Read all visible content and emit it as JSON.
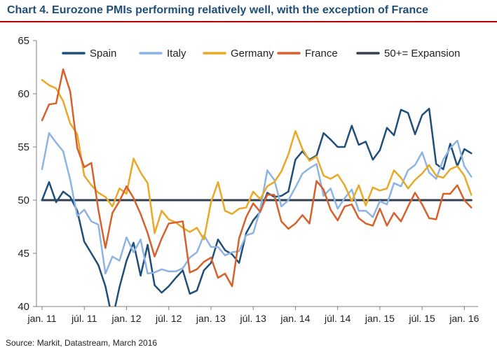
{
  "title": "Chart 4. Eurozone PMIs performing relatively well, with the exception of France",
  "source": "Source: Markit, Datastream, March 2016",
  "chart_data": {
    "type": "line",
    "title": "Chart 4. Eurozone PMIs performing relatively well, with the exception of France",
    "xlabel": "",
    "ylabel": "",
    "ylim": [
      40,
      65
    ],
    "yticks": [
      40,
      45,
      50,
      55,
      60,
      65
    ],
    "grid": false,
    "legend": "top",
    "x_months": [
      "jan. 11",
      "feb. 11",
      "mar. 11",
      "apr. 11",
      "maj 11",
      "jún. 11",
      "júl. 11",
      "aug. 11",
      "sep. 11",
      "okt. 11",
      "nov. 11",
      "dec. 11",
      "jan. 12",
      "feb. 12",
      "mar. 12",
      "apr. 12",
      "maj 12",
      "jún. 12",
      "júl. 12",
      "aug. 12",
      "sep. 12",
      "okt. 12",
      "nov. 12",
      "dec. 12",
      "jan. 13",
      "feb. 13",
      "mar. 13",
      "apr. 13",
      "maj 13",
      "jún. 13",
      "júl. 13",
      "aug. 13",
      "sep. 13",
      "okt. 13",
      "nov. 13",
      "dec. 13",
      "jan. 14",
      "feb. 14",
      "mar. 14",
      "apr. 14",
      "maj 14",
      "jún. 14",
      "júl. 14",
      "aug. 14",
      "sep. 14",
      "okt. 14",
      "nov. 14",
      "dec. 14",
      "jan. 15",
      "feb. 15",
      "mar. 15",
      "apr. 15",
      "maj 15",
      "jún. 15",
      "júl. 15",
      "aug. 15",
      "sep. 15",
      "okt. 15",
      "nov. 15",
      "dec. 15",
      "jan. 16",
      "feb. 16"
    ],
    "x_tick_labels": [
      {
        "index": 0,
        "label": "jan. 11"
      },
      {
        "index": 6,
        "label": "júl. 11"
      },
      {
        "index": 12,
        "label": "jan. 12"
      },
      {
        "index": 18,
        "label": "júl. 12"
      },
      {
        "index": 24,
        "label": "jan. 13"
      },
      {
        "index": 30,
        "label": "júl. 13"
      },
      {
        "index": 36,
        "label": "jan. 14"
      },
      {
        "index": 42,
        "label": "júl. 14"
      },
      {
        "index": 48,
        "label": "jan. 15"
      },
      {
        "index": 54,
        "label": "júl. 15"
      },
      {
        "index": 60,
        "label": "jan. 16"
      }
    ],
    "series": [
      {
        "name": "Spain",
        "color": "#1f4e79",
        "width": 2.5,
        "values": [
          50.0,
          51.7,
          49.8,
          50.8,
          50.3,
          49.0,
          46.1,
          45.0,
          43.9,
          41.9,
          38.8,
          41.8,
          44.3,
          46.0,
          42.9,
          45.8,
          42.0,
          41.3,
          41.9,
          42.7,
          43.4,
          41.2,
          41.5,
          43.4,
          44.1,
          46.3,
          45.3,
          44.9,
          44.1,
          46.9,
          48.1,
          48.9,
          50.7,
          50.3,
          50.4,
          50.8,
          53.8,
          54.6,
          53.8,
          54.2,
          56.3,
          55.7,
          55.0,
          55.0,
          57.0,
          55.2,
          55.5,
          53.8,
          54.7,
          56.8,
          56.1,
          58.5,
          58.2,
          56.2,
          58.0,
          58.6,
          53.4,
          52.9,
          55.3,
          53.2,
          54.8,
          54.4
        ]
      },
      {
        "name": "Italy",
        "color": "#8db4e2",
        "width": 2.5,
        "values": [
          52.9,
          56.3,
          55.4,
          54.6,
          51.9,
          48.5,
          49.1,
          48.0,
          47.7,
          43.1,
          44.7,
          44.3,
          46.5,
          45.1,
          46.3,
          43.1,
          43.2,
          43.5,
          43.3,
          43.3,
          43.6,
          44.6,
          45.1,
          46.7,
          45.6,
          45.6,
          44.8,
          45.1,
          45.2,
          46.7,
          46.9,
          49.1,
          52.8,
          51.9,
          49.4,
          50.0,
          51.2,
          52.5,
          53.0,
          53.4,
          50.4,
          51.1,
          49.2,
          50.2,
          51.0,
          49.0,
          49.0,
          48.4,
          49.9,
          49.6,
          51.6,
          51.3,
          52.8,
          53.3,
          54.5,
          52.6,
          52.0,
          53.8,
          54.9,
          55.6,
          53.2,
          52.2
        ]
      },
      {
        "name": "Germany",
        "color": "#e9a825",
        "width": 2.5,
        "values": [
          61.3,
          60.8,
          60.5,
          59.3,
          57.2,
          56.2,
          52.3,
          51.4,
          50.7,
          50.3,
          49.4,
          51.1,
          50.6,
          53.9,
          52.6,
          51.6,
          46.9,
          49.0,
          48.2,
          47.9,
          47.4,
          47.0,
          47.4,
          46.3,
          49.8,
          51.7,
          49.0,
          48.7,
          49.2,
          49.3,
          50.8,
          50.1,
          51.3,
          51.7,
          52.7,
          54.3,
          56.5,
          54.8,
          53.7,
          54.1,
          52.3,
          52.0,
          52.4,
          51.4,
          49.9,
          51.4,
          49.5,
          51.2,
          50.9,
          51.1,
          52.8,
          52.1,
          51.1,
          51.9,
          52.5,
          53.3,
          52.3,
          52.1,
          52.9,
          53.2,
          52.3,
          50.5
        ]
      },
      {
        "name": "France",
        "color": "#d7612c",
        "width": 2.5,
        "values": [
          57.5,
          59.0,
          59.1,
          62.3,
          60.2,
          54.9,
          53.1,
          53.5,
          49.1,
          45.5,
          48.8,
          49.9,
          51.3,
          50.2,
          48.7,
          46.9,
          44.7,
          46.4,
          47.8,
          47.9,
          48.0,
          43.2,
          43.5,
          44.2,
          44.6,
          42.7,
          43.1,
          41.9,
          46.4,
          48.4,
          49.7,
          48.9,
          50.5,
          50.5,
          48.0,
          47.3,
          47.8,
          48.6,
          47.8,
          51.8,
          51.0,
          49.1,
          48.1,
          49.4,
          49.6,
          48.3,
          47.8,
          47.6,
          49.2,
          47.6,
          48.8,
          48.0,
          49.4,
          50.7,
          49.6,
          48.3,
          48.2,
          50.6,
          50.6,
          51.4,
          50.0,
          49.3
        ]
      },
      {
        "name": "50+= Expansion",
        "color": "#333f4f",
        "width": 3,
        "values": [
          50,
          50,
          50,
          50,
          50,
          50,
          50,
          50,
          50,
          50,
          50,
          50,
          50,
          50,
          50,
          50,
          50,
          50,
          50,
          50,
          50,
          50,
          50,
          50,
          50,
          50,
          50,
          50,
          50,
          50,
          50,
          50,
          50,
          50,
          50,
          50,
          50,
          50,
          50,
          50,
          50,
          50,
          50,
          50,
          50,
          50,
          50,
          50,
          50,
          50,
          50,
          50,
          50,
          50,
          50,
          50,
          50,
          50,
          50,
          50,
          50,
          50
        ]
      }
    ]
  }
}
